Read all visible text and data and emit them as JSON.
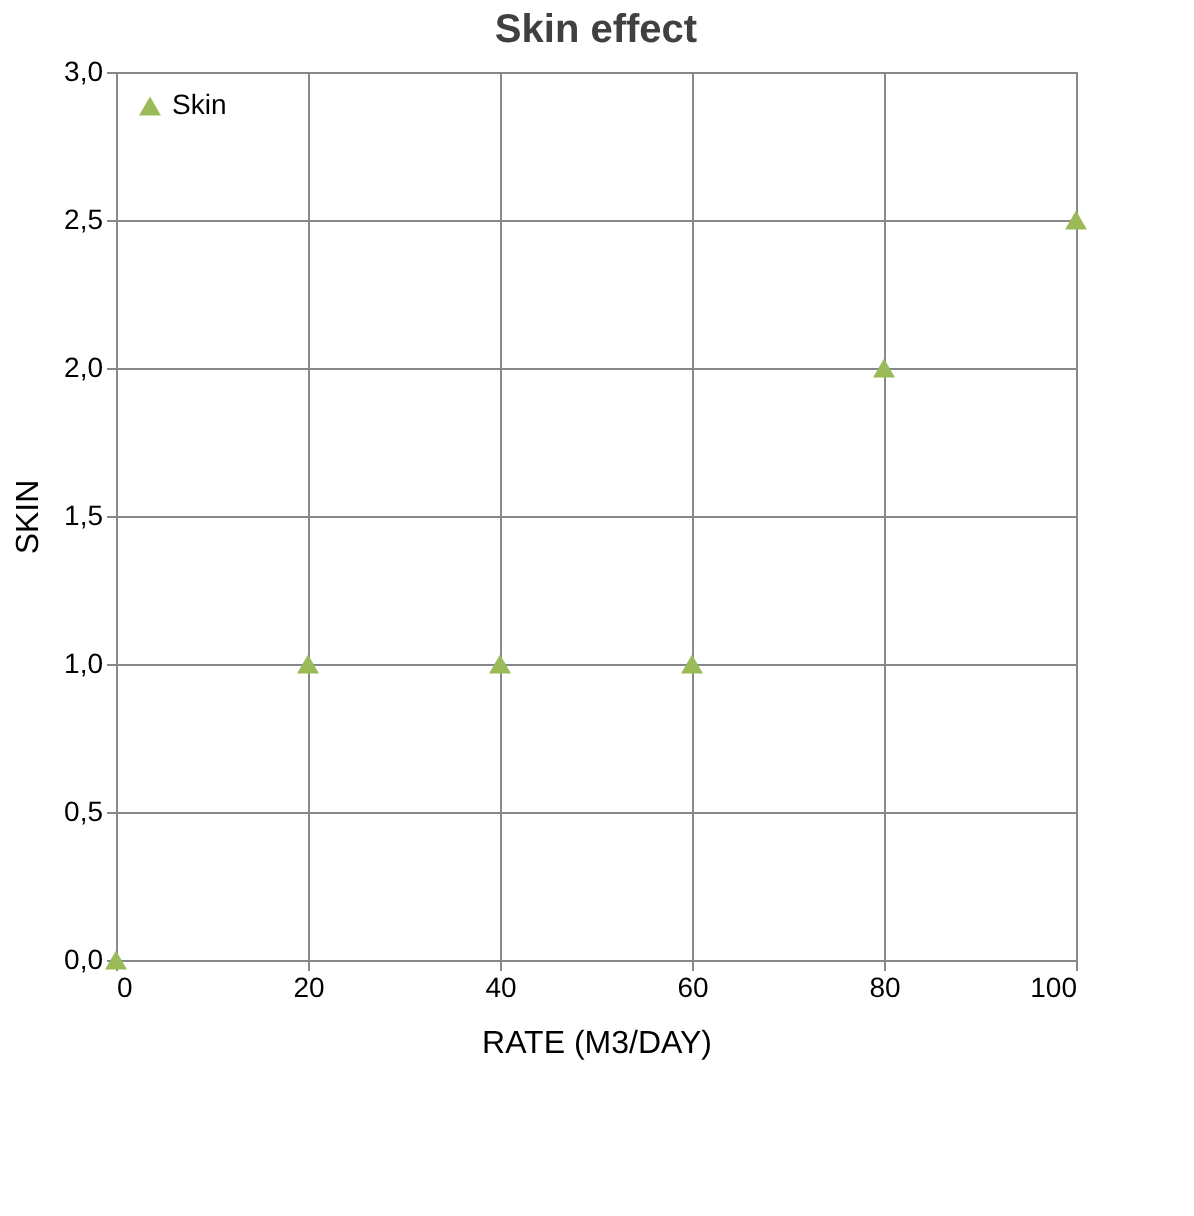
{
  "chart_data": {
    "type": "scatter",
    "title": "Skin effect",
    "xlabel": "RATE (M3/DAY)",
    "ylabel": "SKIN",
    "x": [
      0,
      20,
      40,
      60,
      80,
      100
    ],
    "series": [
      {
        "name": "Skin",
        "color": "#9bbb59",
        "values": [
          0,
          1,
          1,
          1,
          2,
          2.5
        ]
      }
    ],
    "xlim": [
      0,
      100
    ],
    "xticks": [
      0,
      20,
      40,
      60,
      80,
      100
    ],
    "ylim": [
      0,
      3
    ],
    "yticks": [
      {
        "value": 0,
        "label": "0,0"
      },
      {
        "value": 0.5,
        "label": "0,5"
      },
      {
        "value": 1,
        "label": "1,0"
      },
      {
        "value": 1.5,
        "label": "1,5"
      },
      {
        "value": 2,
        "label": "2,0"
      },
      {
        "value": 2.5,
        "label": "2,5"
      },
      {
        "value": 3,
        "label": "3,0"
      }
    ],
    "grid": true,
    "legend": "top left",
    "marker": "triangle"
  }
}
